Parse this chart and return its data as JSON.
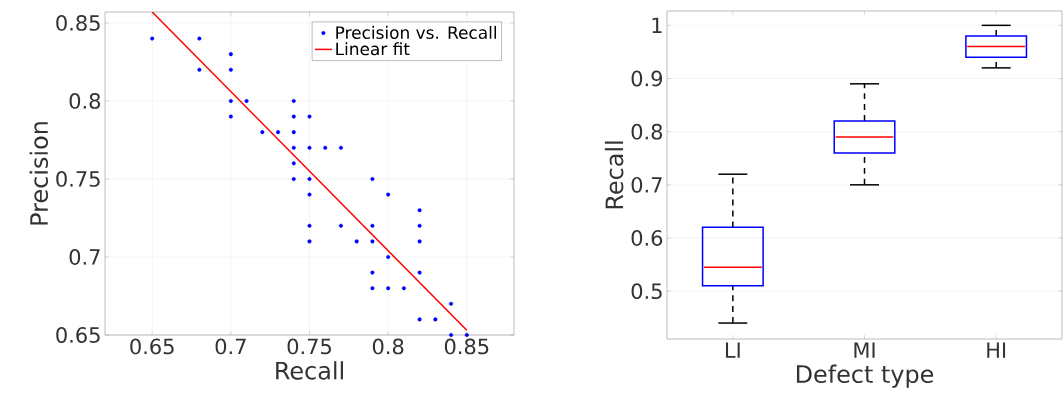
{
  "chart_data": [
    {
      "type": "scatter",
      "xlabel": "Recall",
      "ylabel": "Precision",
      "xlim": [
        0.62,
        0.88
      ],
      "ylim": [
        0.65,
        0.857
      ],
      "xticks": [
        0.65,
        0.7,
        0.75,
        0.8,
        0.85
      ],
      "yticks": [
        0.65,
        0.7,
        0.75,
        0.8,
        0.85
      ],
      "grid": true,
      "legend": "top right",
      "series": [
        {
          "name": "Precision vs. Recall",
          "type": "scatter",
          "marker": "circle",
          "color": "#0000ff",
          "x": [
            0.65,
            0.68,
            0.68,
            0.7,
            0.7,
            0.7,
            0.7,
            0.71,
            0.72,
            0.73,
            0.74,
            0.74,
            0.74,
            0.74,
            0.74,
            0.74,
            0.75,
            0.75,
            0.75,
            0.75,
            0.75,
            0.75,
            0.76,
            0.77,
            0.77,
            0.78,
            0.79,
            0.79,
            0.79,
            0.79,
            0.79,
            0.8,
            0.8,
            0.8,
            0.81,
            0.82,
            0.82,
            0.82,
            0.82,
            0.82,
            0.83,
            0.84,
            0.84,
            0.85
          ],
          "values": [
            0.84,
            0.84,
            0.82,
            0.83,
            0.82,
            0.8,
            0.79,
            0.8,
            0.78,
            0.78,
            0.8,
            0.79,
            0.78,
            0.77,
            0.76,
            0.75,
            0.79,
            0.77,
            0.75,
            0.74,
            0.72,
            0.71,
            0.77,
            0.77,
            0.72,
            0.71,
            0.75,
            0.72,
            0.71,
            0.69,
            0.68,
            0.74,
            0.7,
            0.68,
            0.68,
            0.73,
            0.72,
            0.71,
            0.69,
            0.66,
            0.66,
            0.67,
            0.65,
            0.65
          ]
        },
        {
          "name": "Linear fit",
          "type": "line",
          "marker": "none",
          "line_style": "solid",
          "color": "#ff0000",
          "x": [
            0.65,
            0.85
          ],
          "values": [
            0.857,
            0.653
          ]
        }
      ]
    },
    {
      "type": "box",
      "xlabel": "Defect type",
      "ylabel": "Recall",
      "categories": [
        "LI",
        "MI",
        "HI"
      ],
      "ylim": [
        0.41,
        1.027
      ],
      "yticks": [
        0.5,
        0.6,
        0.7,
        0.8,
        0.9,
        1
      ],
      "grid": true,
      "color": "#0000ff",
      "boxes": [
        {
          "low": 0.44,
          "q1": 0.51,
          "median": 0.545,
          "q3": 0.62,
          "high": 0.72
        },
        {
          "low": 0.7,
          "q1": 0.76,
          "median": 0.79,
          "q3": 0.82,
          "high": 0.89
        },
        {
          "low": 0.92,
          "q1": 0.94,
          "median": 0.96,
          "q3": 0.98,
          "high": 1
        }
      ]
    }
  ]
}
